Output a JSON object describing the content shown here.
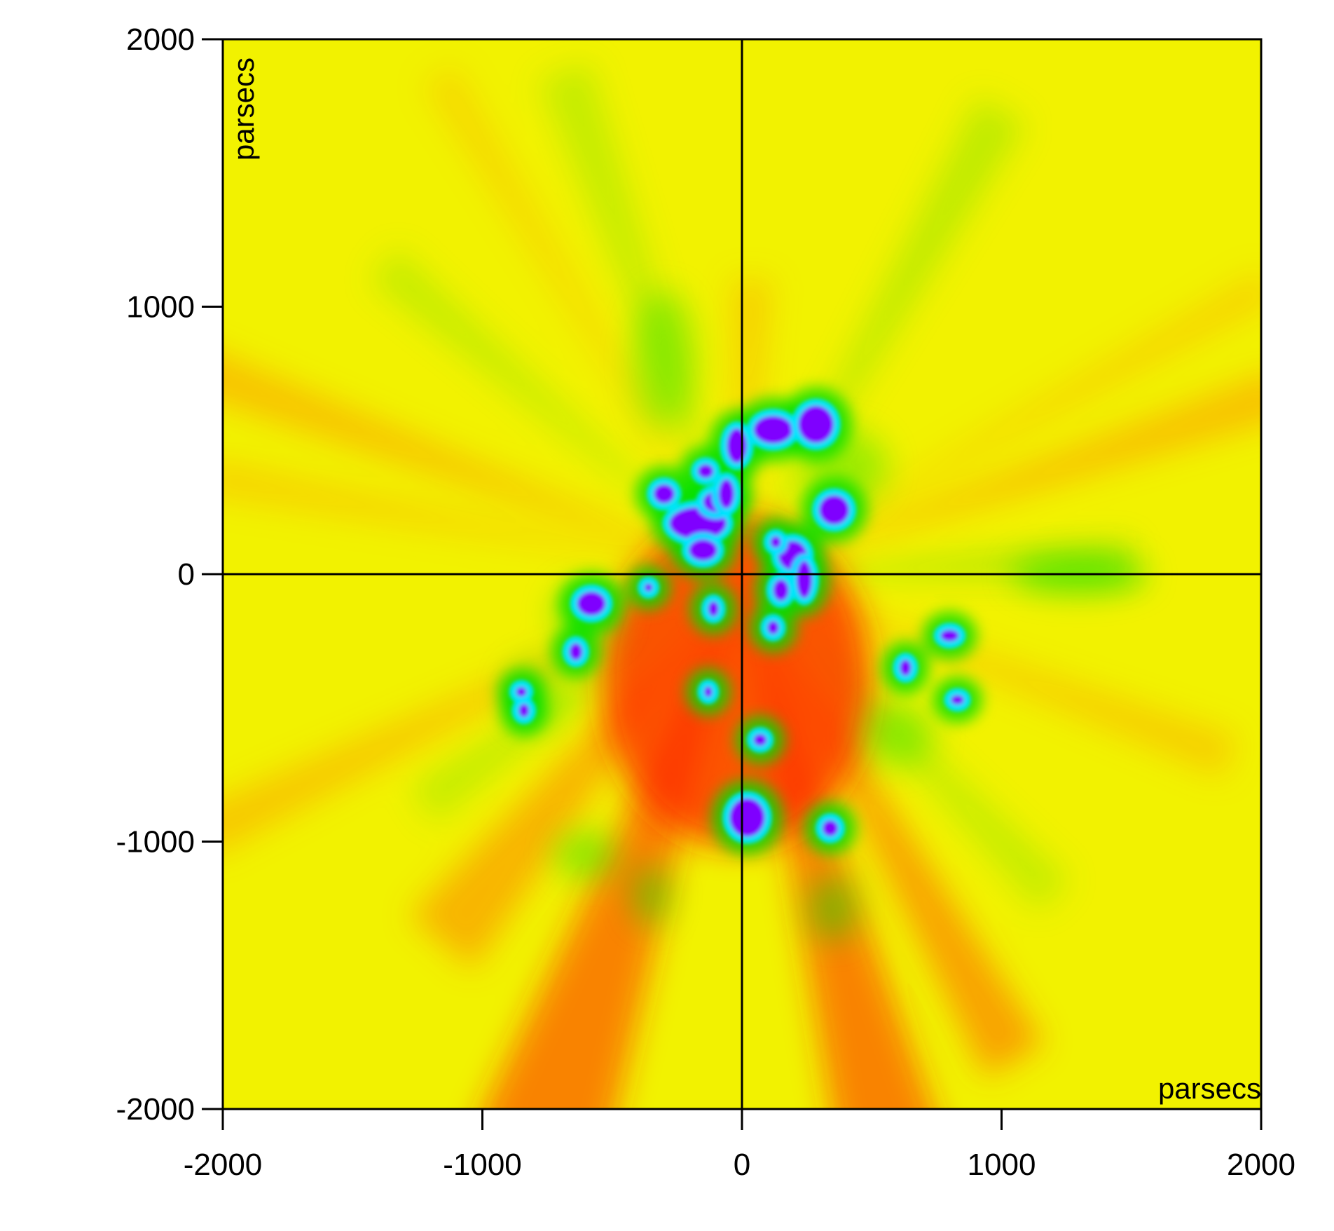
{
  "chart_data": {
    "type": "heatmap",
    "title": "",
    "xlabel": "parsecs",
    "ylabel": "parsecs",
    "xlim": [
      -2000,
      2000
    ],
    "ylim": [
      -2000,
      2000
    ],
    "x_ticks": [
      -2000,
      -1000,
      0,
      1000,
      2000
    ],
    "y_ticks": [
      2000,
      1000,
      0,
      -1000,
      -2000
    ],
    "x_tick_labels": [
      "-2000",
      "-1000",
      "0",
      "1000",
      "2000"
    ],
    "y_tick_labels": [
      "2000",
      "1000",
      "0",
      "-1000",
      "-2000"
    ],
    "crosshair": {
      "x": 0,
      "y": 0
    },
    "grid": false,
    "legend": "none",
    "colormap": [
      "#7f00ff",
      "#00e5ff",
      "#00e000",
      "#ffff00",
      "#ff8000",
      "#ff2000"
    ],
    "background_color": "#f2f200",
    "rays": [
      {
        "angle": 250,
        "length": 2300,
        "width": 520,
        "color": "#ff2a00",
        "opacity": 0.55
      },
      {
        "angle": 285,
        "length": 2400,
        "width": 440,
        "color": "#ff2a00",
        "opacity": 0.55
      },
      {
        "angle": 300,
        "length": 2100,
        "width": 260,
        "color": "#ff5500",
        "opacity": 0.5
      },
      {
        "angle": 230,
        "length": 1800,
        "width": 320,
        "color": "#ff6a00",
        "opacity": 0.45
      },
      {
        "angle": 205,
        "length": 2300,
        "width": 190,
        "color": "#ff8a00",
        "opacity": 0.4
      },
      {
        "angle": 160,
        "length": 2300,
        "width": 190,
        "color": "#ff8a00",
        "opacity": 0.45
      },
      {
        "angle": 170,
        "length": 2100,
        "width": 140,
        "color": "#ff9a00",
        "opacity": 0.35
      },
      {
        "angle": 18,
        "length": 2200,
        "width": 190,
        "color": "#ff8a00",
        "opacity": 0.45
      },
      {
        "angle": 28,
        "length": 2300,
        "width": 130,
        "color": "#ffa000",
        "opacity": 0.35
      },
      {
        "angle": 340,
        "length": 2000,
        "width": 170,
        "color": "#ff9000",
        "opacity": 0.35
      },
      {
        "angle": 88,
        "length": 1100,
        "width": 150,
        "color": "#ff9000",
        "opacity": 0.35
      },
      {
        "angle": 122,
        "length": 2200,
        "width": 140,
        "color": "#ffa000",
        "opacity": 0.3
      },
      {
        "angle": 60,
        "length": 2000,
        "width": 210,
        "color": "#60e000",
        "opacity": 0.35
      },
      {
        "angle": 110,
        "length": 2000,
        "width": 210,
        "color": "#60e000",
        "opacity": 0.3
      },
      {
        "angle": 140,
        "length": 1800,
        "width": 160,
        "color": "#60e000",
        "opacity": 0.3
      },
      {
        "angle": 2,
        "length": 1500,
        "width": 140,
        "color": "#40d800",
        "opacity": 0.35
      },
      {
        "angle": 315,
        "length": 1700,
        "width": 170,
        "color": "#60e000",
        "opacity": 0.3
      },
      {
        "angle": 215,
        "length": 1500,
        "width": 170,
        "color": "#60e000",
        "opacity": 0.3
      }
    ],
    "red_core": {
      "cx": -20,
      "cy": -400,
      "rx": 520,
      "ry": 620,
      "color": "#ff2000",
      "opacity": 0.75
    },
    "green_glows": [
      {
        "cx": 1300,
        "cy": 0,
        "rx": 260,
        "ry": 70,
        "opacity": 0.55
      },
      {
        "cx": -300,
        "cy": 800,
        "rx": 120,
        "ry": 260,
        "opacity": 0.35
      },
      {
        "cx": -600,
        "cy": -1050,
        "rx": 120,
        "ry": 90,
        "opacity": 0.4
      },
      {
        "cx": 350,
        "cy": -1250,
        "rx": 90,
        "ry": 120,
        "opacity": 0.45
      },
      {
        "cx": -350,
        "cy": -1200,
        "rx": 70,
        "ry": 110,
        "opacity": 0.45
      },
      {
        "cx": 600,
        "cy": -600,
        "rx": 140,
        "ry": 120,
        "opacity": 0.35
      },
      {
        "cx": -800,
        "cy": -450,
        "rx": 110,
        "ry": 130,
        "opacity": 0.35
      },
      {
        "cx": 400,
        "cy": 400,
        "rx": 160,
        "ry": 140,
        "opacity": 0.35
      },
      {
        "cx": -600,
        "cy": -150,
        "rx": 130,
        "ry": 120,
        "opacity": 0.35
      }
    ],
    "clumps": [
      {
        "cx": -20,
        "cy": 480,
        "rx": 38,
        "ry": 65
      },
      {
        "cx": 120,
        "cy": 540,
        "rx": 75,
        "ry": 52
      },
      {
        "cx": 285,
        "cy": 560,
        "rx": 68,
        "ry": 70
      },
      {
        "cx": -140,
        "cy": 385,
        "rx": 30,
        "ry": 26
      },
      {
        "cx": -300,
        "cy": 300,
        "rx": 40,
        "ry": 36
      },
      {
        "cx": -170,
        "cy": 190,
        "rx": 110,
        "ry": 60
      },
      {
        "cx": -100,
        "cy": 270,
        "rx": 50,
        "ry": 38
      },
      {
        "cx": -60,
        "cy": 300,
        "rx": 30,
        "ry": 55
      },
      {
        "cx": -150,
        "cy": 90,
        "rx": 55,
        "ry": 40
      },
      {
        "cx": 355,
        "cy": 240,
        "rx": 58,
        "ry": 55
      },
      {
        "cx": 195,
        "cy": 70,
        "rx": 55,
        "ry": 55
      },
      {
        "cx": 240,
        "cy": -20,
        "rx": 30,
        "ry": 70
      },
      {
        "cx": 150,
        "cy": -60,
        "rx": 30,
        "ry": 40
      },
      {
        "cx": 130,
        "cy": 120,
        "rx": 20,
        "ry": 22
      },
      {
        "cx": 120,
        "cy": -200,
        "rx": 22,
        "ry": 25
      },
      {
        "cx": -580,
        "cy": -110,
        "rx": 55,
        "ry": 45
      },
      {
        "cx": -640,
        "cy": -290,
        "rx": 25,
        "ry": 32
      },
      {
        "cx": -850,
        "cy": -440,
        "rx": 20,
        "ry": 18
      },
      {
        "cx": -840,
        "cy": -510,
        "rx": 20,
        "ry": 25
      },
      {
        "cx": -110,
        "cy": -130,
        "rx": 20,
        "ry": 28
      },
      {
        "cx": -130,
        "cy": -440,
        "rx": 15,
        "ry": 20
      },
      {
        "cx": 70,
        "cy": -620,
        "rx": 25,
        "ry": 22
      },
      {
        "cx": 20,
        "cy": -910,
        "rx": 68,
        "ry": 72
      },
      {
        "cx": 340,
        "cy": -950,
        "rx": 30,
        "ry": 30
      },
      {
        "cx": 630,
        "cy": -350,
        "rx": 22,
        "ry": 30
      },
      {
        "cx": 800,
        "cy": -230,
        "rx": 35,
        "ry": 22
      },
      {
        "cx": 830,
        "cy": -470,
        "rx": 25,
        "ry": 18
      },
      {
        "cx": -360,
        "cy": -50,
        "rx": 15,
        "ry": 15
      }
    ]
  }
}
